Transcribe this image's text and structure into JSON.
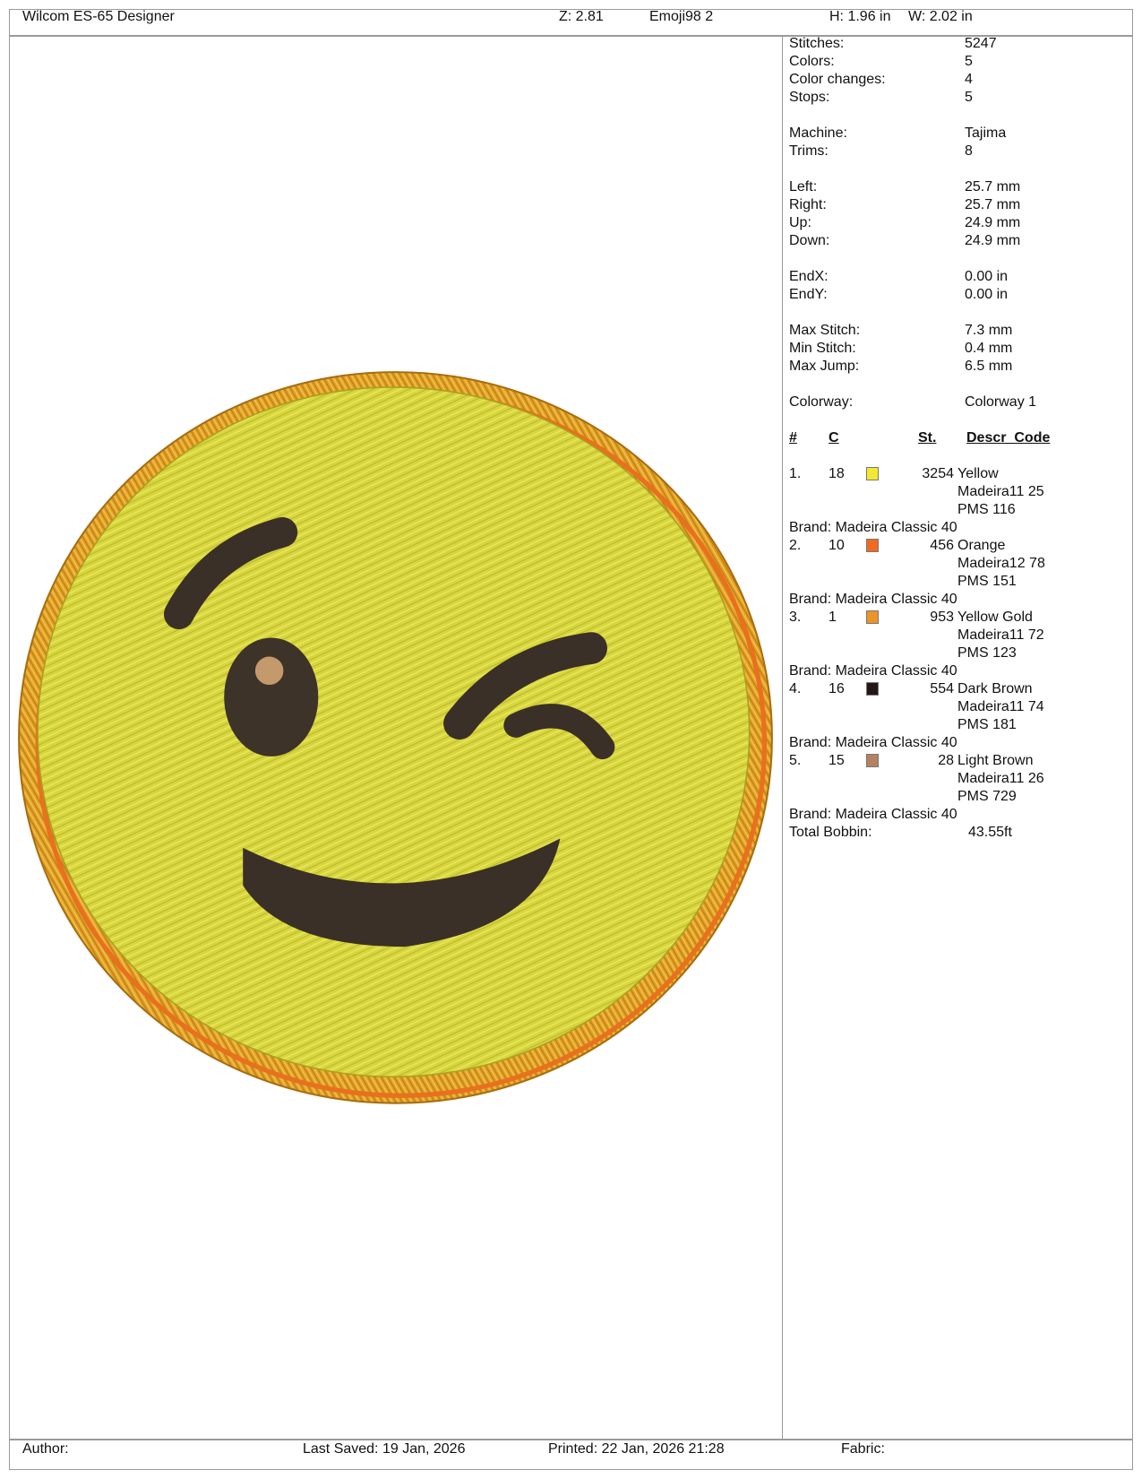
{
  "header": {
    "app_title": "Wilcom ES-65 Designer",
    "zoom": "Z: 2.81",
    "design_name": "Emoji98  2",
    "height": "H: 1.96 in",
    "width": "W: 2.02 in"
  },
  "stats": {
    "group1": [
      {
        "label": "Stitches:",
        "value": "5247"
      },
      {
        "label": "Colors:",
        "value": "5"
      },
      {
        "label": "Color changes:",
        "value": "4"
      },
      {
        "label": "Stops:",
        "value": "5"
      }
    ],
    "group2": [
      {
        "label": "Machine:",
        "value": "Tajima"
      },
      {
        "label": "Trims:",
        "value": "8"
      }
    ],
    "group3": [
      {
        "label": "Left:",
        "value": "25.7 mm"
      },
      {
        "label": "Right:",
        "value": "25.7 mm"
      },
      {
        "label": "Up:",
        "value": "24.9 mm"
      },
      {
        "label": "Down:",
        "value": "24.9 mm"
      }
    ],
    "group4": [
      {
        "label": "EndX:",
        "value": "0.00 in"
      },
      {
        "label": "EndY:",
        "value": "0.00 in"
      }
    ],
    "group5": [
      {
        "label": "Max Stitch:",
        "value": "7.3 mm"
      },
      {
        "label": "Min Stitch:",
        "value": "0.4 mm"
      },
      {
        "label": "Max Jump:",
        "value": "6.5 mm"
      }
    ],
    "colorway": {
      "label": "Colorway:",
      "value": "Colorway 1"
    }
  },
  "color_table": {
    "headers": {
      "num": "#",
      "code": "C",
      "stitches": "St.",
      "descr": "Descr_Code"
    },
    "rows": [
      {
        "num": "1.",
        "code": "18",
        "color": "#f2e832",
        "stitches": "3254",
        "name": "Yellow",
        "thread": "Madeira11 25",
        "pms": "PMS 116",
        "brand": "Brand: Madeira Classic 40"
      },
      {
        "num": "2.",
        "code": "10",
        "color": "#f06a22",
        "stitches": "456",
        "name": "Orange",
        "thread": "Madeira12 78",
        "pms": "PMS 151",
        "brand": "Brand: Madeira Classic 40"
      },
      {
        "num": "3.",
        "code": "1",
        "color": "#ec9428",
        "stitches": "953",
        "name": "Yellow Gold",
        "thread": "Madeira11 72",
        "pms": "PMS 123",
        "brand": "Brand: Madeira Classic 40"
      },
      {
        "num": "4.",
        "code": "16",
        "color": "#241615",
        "stitches": "554",
        "name": "Dark Brown",
        "thread": "Madeira11 74",
        "pms": "PMS 181",
        "brand": "Brand: Madeira Classic 40"
      },
      {
        "num": "5.",
        "code": "15",
        "color": "#b48261",
        "stitches": "28",
        "name": "Light Brown",
        "thread": "Madeira11 26",
        "pms": "PMS 729",
        "brand": "Brand: Madeira Classic 40"
      }
    ],
    "total_bobbin": {
      "label": "Total Bobbin:",
      "value": "43.55ft"
    }
  },
  "footer": {
    "author": "Author:",
    "last_saved": "Last Saved: 19 Jan, 2026",
    "printed": "Printed: 22 Jan, 2026 21:28",
    "fabric": "Fabric:"
  }
}
